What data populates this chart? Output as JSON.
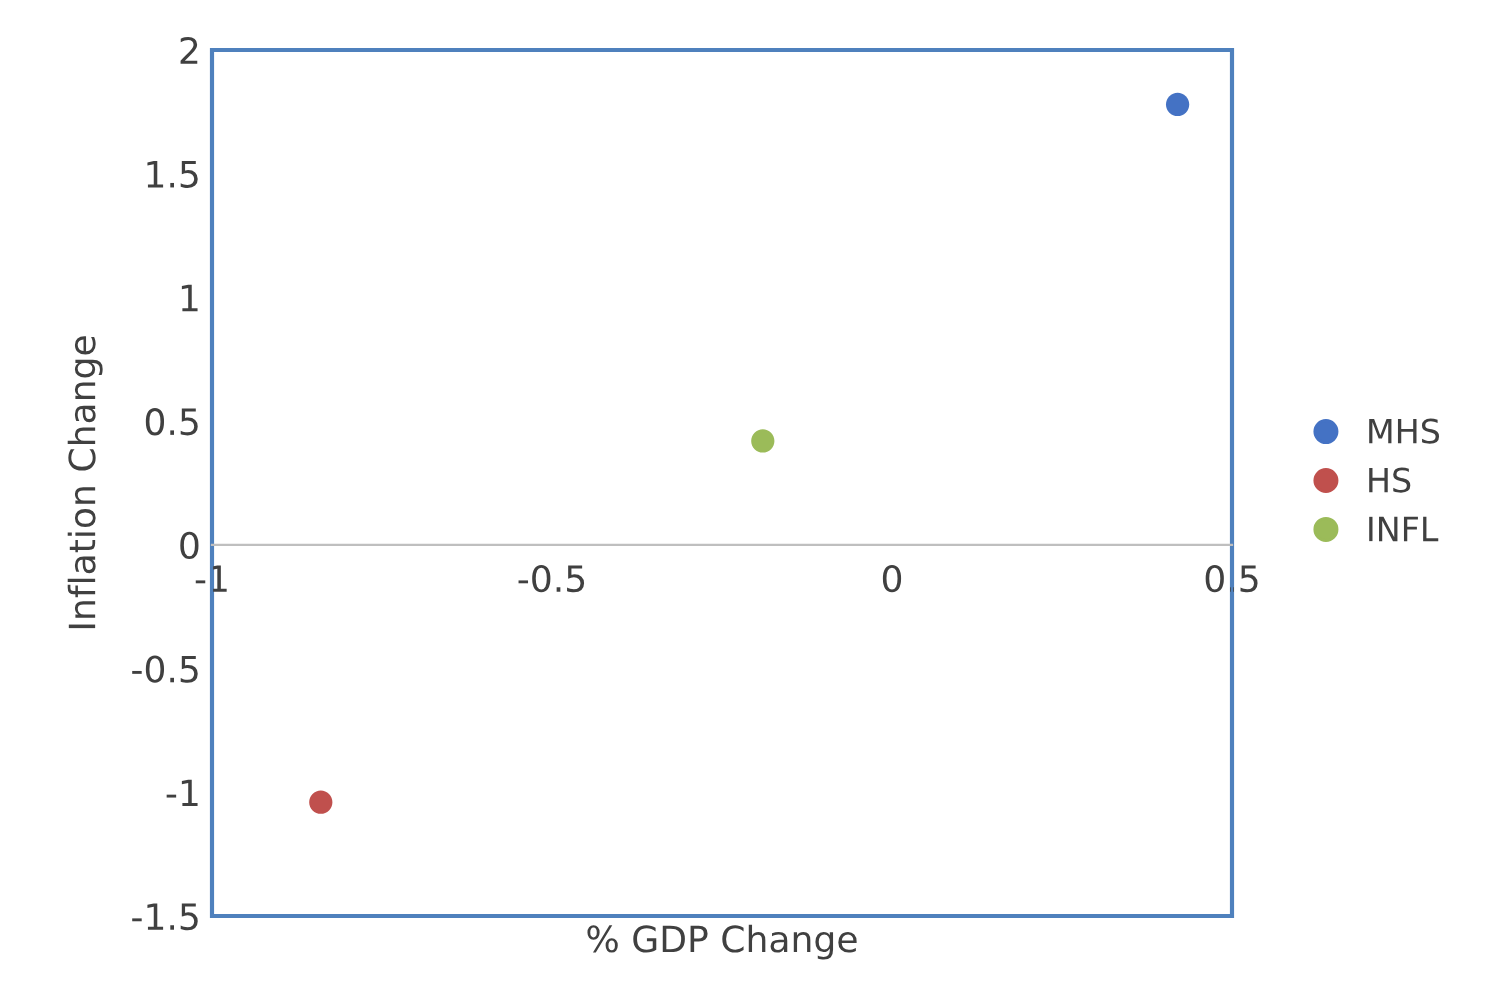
{
  "chart_data": {
    "type": "scatter",
    "xlabel": "% GDP Change",
    "ylabel": "Inflation Change",
    "series": [
      {
        "name": "MHS",
        "color": "#4472c4",
        "x": [
          0.42
        ],
        "values": [
          1.78
        ]
      },
      {
        "name": "HS",
        "color": "#c0504d",
        "x": [
          -0.84
        ],
        "values": [
          -1.04
        ]
      },
      {
        "name": "INFL",
        "color": "#9bbb59",
        "x": [
          -0.19
        ],
        "values": [
          0.42
        ]
      }
    ],
    "xlim": [
      -1,
      0.5
    ],
    "xticks": [
      -1,
      -0.5,
      0,
      0.5
    ],
    "ylim": [
      -1.5,
      2
    ],
    "yticks": [
      -1.5,
      -1,
      -0.5,
      0,
      0.5,
      1,
      1.5,
      2
    ],
    "marker": "circle",
    "grid": false,
    "legend": "right"
  }
}
